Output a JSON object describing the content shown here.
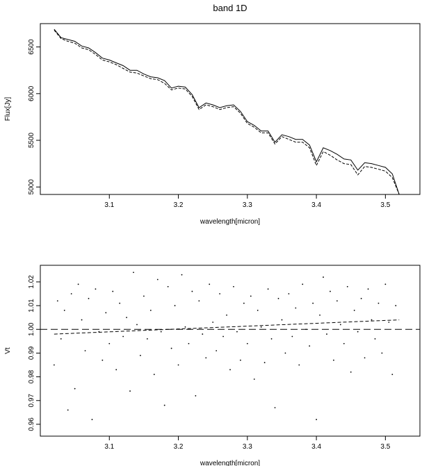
{
  "chart_data": [
    {
      "type": "line",
      "title": "band 1D",
      "xlabel": "wavelength[micron]",
      "ylabel": "Flux[Jy]",
      "xlim": [
        3.0,
        3.55
      ],
      "ylim": [
        4920,
        6750
      ],
      "xticks": [
        "3.1",
        "3.2",
        "3.3",
        "3.4",
        "3.5"
      ],
      "yticks": [
        "5000",
        "5500",
        "6000",
        "6500"
      ],
      "grid": false,
      "series": [
        {
          "style": "solid",
          "x": [
            3.02,
            3.03,
            3.04,
            3.05,
            3.06,
            3.07,
            3.08,
            3.09,
            3.1,
            3.11,
            3.12,
            3.13,
            3.14,
            3.15,
            3.16,
            3.17,
            3.18,
            3.19,
            3.2,
            3.21,
            3.22,
            3.23,
            3.24,
            3.25,
            3.26,
            3.27,
            3.28,
            3.29,
            3.3,
            3.31,
            3.32,
            3.33,
            3.34,
            3.35,
            3.36,
            3.37,
            3.38,
            3.39,
            3.4,
            3.41,
            3.42,
            3.43,
            3.44,
            3.45,
            3.46,
            3.47,
            3.48,
            3.49,
            3.5,
            3.51,
            3.52
          ],
          "y": [
            6690,
            6600,
            6580,
            6560,
            6510,
            6490,
            6440,
            6380,
            6360,
            6330,
            6300,
            6250,
            6250,
            6210,
            6180,
            6170,
            6140,
            6060,
            6080,
            6070,
            5990,
            5850,
            5900,
            5880,
            5850,
            5870,
            5880,
            5810,
            5700,
            5660,
            5600,
            5600,
            5480,
            5560,
            5540,
            5510,
            5510,
            5450,
            5270,
            5420,
            5390,
            5350,
            5300,
            5290,
            5180,
            5260,
            5250,
            5230,
            5210,
            5140,
            4920
          ]
        },
        {
          "style": "dashed",
          "x": [
            3.02,
            3.03,
            3.04,
            3.05,
            3.06,
            3.07,
            3.08,
            3.09,
            3.1,
            3.11,
            3.12,
            3.13,
            3.14,
            3.15,
            3.16,
            3.17,
            3.18,
            3.19,
            3.2,
            3.21,
            3.22,
            3.23,
            3.24,
            3.25,
            3.26,
            3.27,
            3.28,
            3.29,
            3.3,
            3.31,
            3.32,
            3.33,
            3.34,
            3.35,
            3.36,
            3.37,
            3.38,
            3.39,
            3.4,
            3.41,
            3.42,
            3.43,
            3.44,
            3.45,
            3.46,
            3.47,
            3.48,
            3.49,
            3.5,
            3.51,
            3.52
          ],
          "y": [
            6680,
            6590,
            6560,
            6540,
            6490,
            6470,
            6420,
            6360,
            6340,
            6310,
            6270,
            6230,
            6220,
            6190,
            6160,
            6150,
            6110,
            6040,
            6060,
            6050,
            5970,
            5830,
            5880,
            5860,
            5830,
            5850,
            5860,
            5790,
            5680,
            5640,
            5580,
            5580,
            5460,
            5540,
            5510,
            5480,
            5480,
            5420,
            5230,
            5380,
            5340,
            5290,
            5250,
            5240,
            5130,
            5220,
            5210,
            5190,
            5170,
            5100,
            4920
          ]
        }
      ]
    },
    {
      "type": "scatter",
      "xlabel": "wavelength[micron]",
      "ylabel": "Vt",
      "xlim": [
        3.0,
        3.55
      ],
      "ylim": [
        0.955,
        1.027
      ],
      "xticks": [
        "3.1",
        "3.2",
        "3.3",
        "3.4",
        "3.5"
      ],
      "yticks": [
        "0.96",
        "0.97",
        "0.98",
        "0.99",
        "1.00",
        "1.01",
        "1.02"
      ],
      "grid": false,
      "reference_line": {
        "y": 1.0,
        "style": "long-dash"
      },
      "fit_line": {
        "x": [
          3.02,
          3.52
        ],
        "y": [
          0.998,
          1.004
        ],
        "style": "dashed"
      },
      "series": [
        {
          "style": "points",
          "x": [
            3.02,
            3.025,
            3.03,
            3.035,
            3.04,
            3.045,
            3.05,
            3.055,
            3.06,
            3.065,
            3.07,
            3.075,
            3.08,
            3.085,
            3.09,
            3.095,
            3.1,
            3.105,
            3.11,
            3.115,
            3.12,
            3.125,
            3.13,
            3.135,
            3.14,
            3.145,
            3.15,
            3.155,
            3.16,
            3.165,
            3.17,
            3.175,
            3.18,
            3.185,
            3.19,
            3.195,
            3.2,
            3.205,
            3.21,
            3.215,
            3.22,
            3.225,
            3.23,
            3.235,
            3.24,
            3.245,
            3.25,
            3.255,
            3.26,
            3.265,
            3.27,
            3.275,
            3.28,
            3.285,
            3.29,
            3.295,
            3.3,
            3.305,
            3.31,
            3.315,
            3.32,
            3.325,
            3.33,
            3.335,
            3.34,
            3.345,
            3.35,
            3.355,
            3.36,
            3.365,
            3.37,
            3.375,
            3.38,
            3.385,
            3.39,
            3.395,
            3.4,
            3.405,
            3.41,
            3.415,
            3.42,
            3.425,
            3.43,
            3.435,
            3.44,
            3.445,
            3.45,
            3.455,
            3.46,
            3.465,
            3.47,
            3.475,
            3.48,
            3.485,
            3.49,
            3.495,
            3.5,
            3.505,
            3.51,
            3.515
          ],
          "y": [
            0.985,
            1.012,
            0.996,
            1.008,
            0.966,
            1.015,
            0.975,
            1.019,
            1.004,
            0.991,
            1.013,
            0.962,
            1.017,
            0.999,
            0.987,
            1.007,
            0.994,
            1.016,
            0.983,
            1.011,
            0.997,
            1.005,
            0.974,
            1.024,
            1.002,
            0.989,
            1.014,
            0.996,
            1.008,
            0.981,
            1.021,
            0.999,
            0.968,
            1.018,
            0.992,
            1.01,
            0.985,
            1.023,
            1.001,
            0.994,
            1.016,
            0.972,
            1.012,
            0.998,
            0.988,
            1.019,
            1.003,
            0.991,
            1.015,
            0.997,
            1.006,
            0.983,
            1.018,
            0.999,
            0.987,
            1.011,
            0.994,
            1.014,
            0.979,
            1.008,
            1.001,
            0.986,
            1.017,
            0.996,
            0.967,
            1.013,
            1.004,
            0.99,
            1.015,
            0.997,
            1.009,
            0.985,
            1.019,
            1.0,
            0.993,
            1.011,
            0.962,
            1.006,
            1.022,
            0.998,
            1.016,
            0.987,
            1.012,
            1.002,
            0.994,
            1.018,
            0.982,
            1.008,
            0.999,
            1.013,
            0.988,
            1.017,
            1.004,
            0.996,
            1.011,
            0.99,
            1.019,
            1.003,
            0.981,
            1.01
          ]
        }
      ]
    }
  ]
}
